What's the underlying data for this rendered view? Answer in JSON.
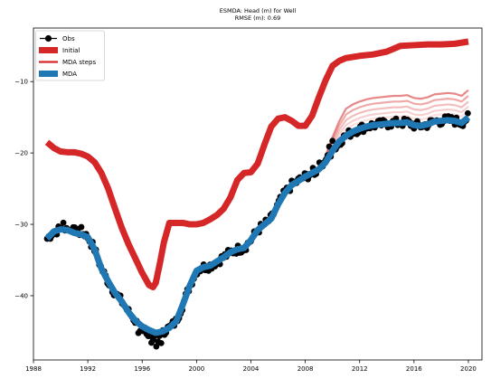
{
  "chart_data": {
    "type": "line",
    "title": "ESMDA: Head (m) for Well",
    "subtitle": "RMSE (m): 0.69",
    "xlabel": "",
    "ylabel": "",
    "xlim": [
      1988,
      2021
    ],
    "ylim": [
      -49,
      -2.5
    ],
    "x_ticks": [
      1988,
      1992,
      1996,
      2000,
      2004,
      2008,
      2012,
      2016,
      2020
    ],
    "y_ticks": [
      -40,
      -30,
      -20,
      -10
    ],
    "legend": {
      "placement": "top-left",
      "entries": [
        "Obs",
        "Initial",
        "MDA steps",
        "MDA"
      ]
    },
    "colors": {
      "obs": "#000000",
      "initial": "#d62728",
      "steps": "#d62728",
      "mda": "#1f77b4"
    },
    "series": [
      {
        "name": "Initial",
        "x": [
          1989.0,
          1989.5,
          1990.0,
          1990.5,
          1991.0,
          1991.5,
          1992.0,
          1992.5,
          1993.0,
          1993.5,
          1994.0,
          1994.5,
          1995.0,
          1995.5,
          1996.0,
          1996.5,
          1996.8,
          1997.0,
          1997.3,
          1997.6,
          1998.0,
          1998.5,
          1999.0,
          1999.5,
          2000.0,
          2000.5,
          2001.0,
          2001.5,
          2002.0,
          2002.5,
          2003.0,
          2003.5,
          2004.0,
          2004.5,
          2005.0,
          2005.5,
          2006.0,
          2006.5,
          2007.0,
          2007.5,
          2008.0,
          2008.5,
          2009.0,
          2009.5,
          2010.0,
          2010.5,
          2011.0,
          2012.0,
          2013.0,
          2014.0,
          2015.0,
          2016.0,
          2017.0,
          2018.0,
          2019.0,
          2020.0
        ],
        "values": [
          -18.5,
          -19.3,
          -19.8,
          -19.9,
          -19.9,
          -20.1,
          -20.5,
          -21.3,
          -22.8,
          -25.0,
          -27.8,
          -30.5,
          -32.8,
          -34.8,
          -36.8,
          -38.5,
          -38.8,
          -38.2,
          -35.5,
          -32.5,
          -29.8,
          -29.8,
          -29.8,
          -30.0,
          -30.0,
          -29.8,
          -29.3,
          -28.7,
          -27.8,
          -26.2,
          -23.8,
          -22.8,
          -22.7,
          -21.5,
          -18.8,
          -16.3,
          -15.2,
          -15.0,
          -15.5,
          -16.2,
          -16.2,
          -14.8,
          -12.2,
          -9.8,
          -7.8,
          -7.1,
          -6.7,
          -6.4,
          -6.2,
          -5.8,
          -5.0,
          -4.9,
          -4.8,
          -4.8,
          -4.7,
          -4.4
        ]
      },
      {
        "name": "MDA",
        "x": [
          1989.0,
          1989.5,
          1990.0,
          1990.5,
          1991.0,
          1991.5,
          1992.0,
          1992.5,
          1993.0,
          1993.5,
          1994.0,
          1994.5,
          1995.0,
          1995.5,
          1996.0,
          1996.5,
          1997.0,
          1997.5,
          1998.0,
          1998.5,
          1999.0,
          1999.5,
          2000.0,
          2000.5,
          2001.0,
          2001.5,
          2002.0,
          2002.5,
          2003.0,
          2003.5,
          2004.0,
          2004.5,
          2005.0,
          2005.5,
          2006.0,
          2006.5,
          2007.0,
          2007.5,
          2008.0,
          2008.5,
          2009.0,
          2009.5,
          2010.0,
          2010.5,
          2011.0,
          2011.5,
          2012.0,
          2012.5,
          2013.0,
          2013.5,
          2014.0,
          2014.5,
          2015.0,
          2015.5,
          2016.0,
          2016.5,
          2017.0,
          2017.5,
          2018.0,
          2018.5,
          2019.0,
          2019.5,
          2020.0
        ],
        "values": [
          -32.0,
          -31.0,
          -30.7,
          -30.8,
          -31.2,
          -31.4,
          -31.8,
          -33.5,
          -36.2,
          -38.0,
          -39.6,
          -40.8,
          -42.3,
          -43.5,
          -44.3,
          -44.8,
          -45.2,
          -45.0,
          -44.5,
          -43.6,
          -41.2,
          -38.6,
          -36.5,
          -36.0,
          -35.8,
          -35.2,
          -34.6,
          -33.9,
          -33.5,
          -33.3,
          -32.2,
          -30.8,
          -30.0,
          -29.2,
          -27.2,
          -25.6,
          -24.5,
          -23.9,
          -23.3,
          -22.8,
          -22.3,
          -21.3,
          -19.7,
          -18.4,
          -17.6,
          -17.0,
          -16.6,
          -16.3,
          -16.1,
          -16.0,
          -15.9,
          -15.8,
          -15.8,
          -15.7,
          -16.1,
          -16.2,
          -16.0,
          -15.6,
          -15.5,
          -15.4,
          -15.5,
          -15.8,
          -15.0
        ]
      }
    ],
    "mda_steps_offsets_from_2010": [
      0.9,
      1.5,
      2.2,
      3.0,
      3.8
    ]
  }
}
